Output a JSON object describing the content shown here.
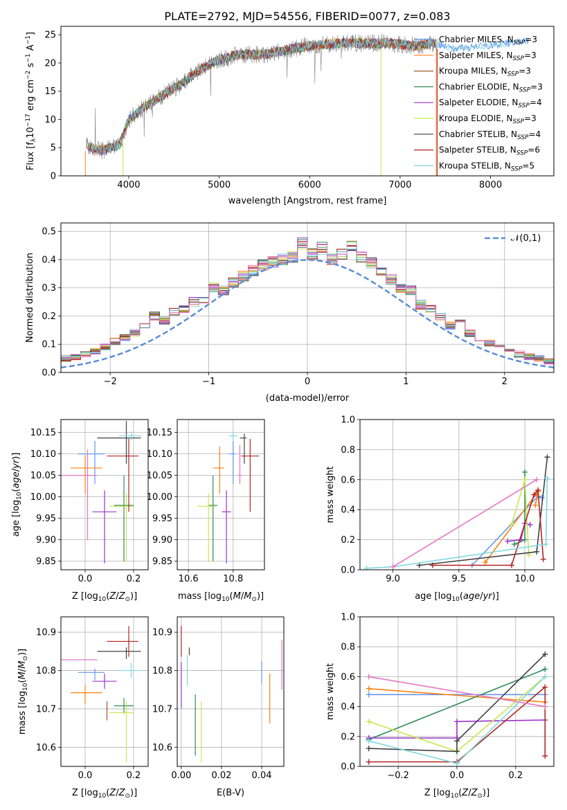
{
  "figure_title": "PLATE=2792, MJD=54556, FIBERID=0077, z=0.083",
  "colors": {
    "Chabrier MILES": "#6495ed",
    "Salpeter MILES": "#ff7f0e",
    "Kroupa MILES": "#a0522d",
    "Chabrier ELODIE": "#2e8b57",
    "Salpeter ELODIE": "#9932cc",
    "Kroupa ELODIE": "#c8e650",
    "Chabrier STELIB": "#404040",
    "Salpeter STELIB": "#b22222",
    "Kroupa STELIB": "#7fd8e0",
    "pink": "#e377c2",
    "normal": "#5b8dd6"
  },
  "chart_data": [
    {
      "id": "spectrum",
      "type": "line",
      "title": "PLATE=2792, MJD=54556, FIBERID=0077, z=0.083",
      "xlabel": "wavelength [Angstrom, rest frame]",
      "ylabel": "Flux [f_λ 10^-17 erg cm^-2 s^-1 A^-1]",
      "xlim": [
        3250,
        8700
      ],
      "ylim": [
        0,
        26.5
      ],
      "xticks": [
        "4000",
        "5000",
        "6000",
        "7000",
        "8000"
      ],
      "yticks": [
        "0",
        "5",
        "10",
        "15",
        "20",
        "25"
      ],
      "legend": [
        "Chabrier MILES, N_SSP=3",
        "Salpeter MILES, N_SSP=3",
        "Kroupa MILES, N_SSP=3",
        "Chabrier ELODIE, N_SSP=3",
        "Salpeter ELODIE, N_SSP=4",
        "Kroupa ELODIE, N_SSP=3",
        "Chabrier STELIB, N_SSP=4",
        "Salpeter STELIB, N_SSP=6",
        "Kroupa STELIB, N_SSP=5"
      ],
      "continuum": {
        "x": [
          3500,
          3700,
          3900,
          4000,
          4200,
          4400,
          4600,
          4800,
          5000,
          5200,
          5500,
          5800,
          6000,
          6300,
          6600,
          6900,
          7200,
          7400,
          7600,
          7900,
          8200,
          8400
        ],
        "y": [
          5.5,
          4.5,
          5.5,
          10,
          12.5,
          14.5,
          16.5,
          19,
          20.5,
          21.5,
          21.5,
          22.5,
          23,
          23.5,
          23.5,
          23.5,
          23,
          23.5,
          22.5,
          23,
          23.5,
          24
        ]
      }
    },
    {
      "id": "residuals",
      "type": "histogram",
      "xlabel": "(data-model)/error",
      "ylabel": "Normed distribution",
      "xlim": [
        -2.5,
        2.5
      ],
      "ylim": [
        0,
        0.53
      ],
      "xticks": [
        "−2",
        "−1",
        "0",
        "1",
        "2"
      ],
      "yticks": [
        "0.0",
        "0.1",
        "0.2",
        "0.3",
        "0.4",
        "0.5"
      ],
      "legend": "𝒩(0,1)",
      "bin_width": 0.1,
      "mean_bins": [
        0.02,
        0.025,
        0.03,
        0.035,
        0.04,
        0.05,
        0.055,
        0.065,
        0.075,
        0.09,
        0.11,
        0.125,
        0.14,
        0.16,
        0.2,
        0.185,
        0.215,
        0.225,
        0.25,
        0.26,
        0.3,
        0.29,
        0.32,
        0.34,
        0.36,
        0.38,
        0.39,
        0.4,
        0.41,
        0.46,
        0.42,
        0.44,
        0.4,
        0.42,
        0.45,
        0.41,
        0.39,
        0.36,
        0.33,
        0.3,
        0.29,
        0.24,
        0.225,
        0.2,
        0.165,
        0.175,
        0.14,
        0.125,
        0.105,
        0.09,
        0.075,
        0.065,
        0.055,
        0.05,
        0.04,
        0.035,
        0.03,
        0.025,
        0.025,
        0.02
      ]
    },
    {
      "id": "age-vs-Z",
      "type": "errorbar",
      "xlabel": "Z [log10(Z/Z⊙)]",
      "ylabel": "age  [log10(age/yr)]",
      "xlim": [
        -0.1,
        0.26
      ],
      "ylim": [
        9.83,
        10.18
      ],
      "xticks": [
        "0.0",
        "0.2"
      ],
      "yticks": [
        "9.85",
        "9.90",
        "9.95",
        "10.00",
        "10.05",
        "10.10",
        "10.15"
      ],
      "points": [
        {
          "model": "Chabrier MILES",
          "x": 0.04,
          "xerr": [
            0.07,
            0.04
          ],
          "y": 10.1,
          "yerr": [
            0.07,
            0.03
          ]
        },
        {
          "model": "Salpeter MILES",
          "x": 0.0,
          "xerr": [
            0.06,
            0.07
          ],
          "y": 10.067,
          "yerr": [
            0.06,
            0.03
          ]
        },
        {
          "model": "Chabrier ELODIE",
          "x": 0.16,
          "xerr": [
            0.04,
            0.04
          ],
          "y": 9.98,
          "yerr": [
            0.13,
            0.07
          ]
        },
        {
          "model": "Salpeter ELODIE",
          "x": 0.08,
          "xerr": [
            0.05,
            0.05
          ],
          "y": 9.965,
          "yerr": [
            0.12,
            0.05
          ]
        },
        {
          "model": "Kroupa ELODIE",
          "x": 0.17,
          "xerr": [
            0.07,
            0.03
          ],
          "y": 9.978,
          "yerr": [
            0.13,
            0.03
          ]
        },
        {
          "model": "Chabrier STELIB",
          "x": 0.17,
          "xerr": [
            0.12,
            0.06
          ],
          "y": 10.137,
          "yerr": [
            0.06,
            0.04
          ]
        },
        {
          "model": "Salpeter STELIB",
          "x": 0.18,
          "xerr": [
            0.09,
            0.04
          ],
          "y": 10.095,
          "yerr": [
            0.13,
            0.04
          ]
        },
        {
          "model": "Kroupa STELIB",
          "x": 0.19,
          "xerr": [
            0.05,
            0.04
          ],
          "y": 10.142,
          "yerr": [
            0.01,
            0.01
          ]
        },
        {
          "model": "pink",
          "x": 0.01,
          "xerr": [
            0.12,
            0.04
          ],
          "y": 10.05,
          "yerr": [
            0.15,
            0.06
          ]
        }
      ]
    },
    {
      "id": "age-vs-mass",
      "type": "errorbar",
      "xlabel": "mass [log10(M/M⊙)]",
      "ylabel": "",
      "xlim": [
        10.55,
        10.94
      ],
      "ylim": [
        9.83,
        10.18
      ],
      "xticks": [
        "10.6",
        "10.8"
      ],
      "yticks": [
        "9.85",
        "9.90",
        "9.95",
        "10.00",
        "10.05",
        "10.10",
        "10.15"
      ],
      "points": [
        {
          "model": "Chabrier MILES",
          "x": 10.8,
          "xerr": [
            0.02,
            0.01
          ],
          "y": 10.1,
          "yerr": [
            0.07,
            0.03
          ]
        },
        {
          "model": "Salpeter MILES",
          "x": 10.74,
          "xerr": [
            0.03,
            0.02
          ],
          "y": 10.067,
          "yerr": [
            0.06,
            0.05
          ]
        },
        {
          "model": "Chabrier ELODIE",
          "x": 10.71,
          "xerr": [
            0.02,
            0.02
          ],
          "y": 9.98,
          "yerr": [
            0.13,
            0.07
          ]
        },
        {
          "model": "Salpeter ELODIE",
          "x": 10.77,
          "xerr": [
            0.02,
            0.02
          ],
          "y": 9.965,
          "yerr": [
            0.12,
            0.05
          ]
        },
        {
          "model": "Kroupa ELODIE",
          "x": 10.69,
          "xerr": [
            0.05,
            0.03
          ],
          "y": 9.978,
          "yerr": [
            0.13,
            0.03
          ]
        },
        {
          "model": "Chabrier STELIB",
          "x": 10.85,
          "xerr": [
            0.02,
            0.01
          ],
          "y": 10.137,
          "yerr": [
            0.06,
            0.01
          ]
        },
        {
          "model": "Salpeter STELIB",
          "x": 10.876,
          "xerr": [
            0.04,
            0.04
          ],
          "y": 10.095,
          "yerr": [
            0.13,
            0.04
          ]
        },
        {
          "model": "Kroupa STELIB",
          "x": 10.8,
          "xerr": [
            0.02,
            0.02
          ],
          "y": 10.142,
          "yerr": [
            0.01,
            0.01
          ]
        },
        {
          "model": "pink",
          "x": 10.83,
          "xerr": [
            0.01,
            0.01
          ],
          "y": 10.05,
          "yerr": [
            0.02,
            0.07
          ]
        }
      ]
    },
    {
      "id": "massweight-vs-age",
      "type": "line",
      "xlabel": "age  [log10(age/yr)]",
      "ylabel": "mass weight",
      "xlim": [
        8.75,
        10.22
      ],
      "ylim": [
        0,
        1
      ],
      "xticks": [
        "9.0",
        "9.5",
        "10.0"
      ],
      "yticks": [
        "0.0",
        "0.2",
        "0.4",
        "0.6",
        "0.8",
        "1.0"
      ],
      "series": [
        {
          "model": "Chabrier MILES",
          "x": [
            9.6,
            10.1,
            10.13
          ],
          "y": [
            0.03,
            0.49,
            0.48
          ]
        },
        {
          "model": "Salpeter MILES",
          "x": [
            9.7,
            10.1,
            10.08
          ],
          "y": [
            0.05,
            0.52,
            0.43
          ]
        },
        {
          "model": "Chabrier ELODIE",
          "x": [
            9.92,
            10.0,
            10.0
          ],
          "y": [
            0.17,
            0.2,
            0.65
          ]
        },
        {
          "model": "Salpeter ELODIE",
          "x": [
            9.87,
            9.97,
            10.0,
            10.04
          ],
          "y": [
            0.19,
            0.2,
            0.31,
            0.3
          ]
        },
        {
          "model": "Kroupa ELODIE",
          "x": [
            9.9,
            10.0,
            10.03
          ],
          "y": [
            0.3,
            0.6,
            0.1
          ]
        },
        {
          "model": "Chabrier STELIB",
          "x": [
            9.2,
            10.09,
            10.17
          ],
          "y": [
            0.03,
            0.12,
            0.75
          ]
        },
        {
          "model": "Salpeter STELIB",
          "x": [
            9.3,
            9.9,
            10.07,
            10.1,
            10.14
          ],
          "y": [
            0.03,
            0.03,
            0.5,
            0.53,
            0.07
          ]
        },
        {
          "model": "Kroupa STELIB",
          "x": [
            8.8,
            9.0,
            10.16,
            10.17
          ],
          "y": [
            0.01,
            0.02,
            0.17,
            0.61
          ]
        },
        {
          "model": "pink",
          "x": [
            9.0,
            10.09
          ],
          "y": [
            0.02,
            0.6
          ]
        }
      ]
    },
    {
      "id": "mass-vs-Z",
      "type": "errorbar",
      "xlabel": "Z [log10(Z/Z⊙)]",
      "ylabel": "mass [log10(M/M⊙)]",
      "xlim": [
        -0.1,
        0.26
      ],
      "ylim": [
        10.55,
        10.94
      ],
      "xticks": [
        "0.0",
        "0.2"
      ],
      "yticks": [
        "10.6",
        "10.7",
        "10.8",
        "10.9"
      ],
      "points": [
        {
          "model": "Chabrier MILES",
          "x": 0.04,
          "xerr": [
            0.07,
            0.04
          ],
          "y": 10.795,
          "yerr": [
            0.02,
            0.01
          ]
        },
        {
          "model": "Salpeter MILES",
          "x": 0.0,
          "xerr": [
            0.06,
            0.07
          ],
          "y": 10.742,
          "yerr": [
            0.03,
            0.02
          ]
        },
        {
          "model": "Kroupa MILES",
          "x": 0.09,
          "xerr": [
            0.0,
            0.0
          ],
          "y": 10.7,
          "yerr": [
            0.03,
            0.02
          ]
        },
        {
          "model": "Chabrier ELODIE",
          "x": 0.16,
          "xerr": [
            0.04,
            0.04
          ],
          "y": 10.708,
          "yerr": [
            0.02,
            0.02
          ]
        },
        {
          "model": "Salpeter ELODIE",
          "x": 0.08,
          "xerr": [
            0.05,
            0.05
          ],
          "y": 10.772,
          "yerr": [
            0.02,
            0.02
          ]
        },
        {
          "model": "Kroupa ELODIE",
          "x": 0.17,
          "xerr": [
            0.07,
            0.03
          ],
          "y": 10.69,
          "yerr": [
            0.13,
            0.03
          ]
        },
        {
          "model": "Chabrier STELIB",
          "x": 0.17,
          "xerr": [
            0.12,
            0.06
          ],
          "y": 10.85,
          "yerr": [
            0.02,
            0.01
          ]
        },
        {
          "model": "Salpeter STELIB",
          "x": 0.18,
          "xerr": [
            0.09,
            0.04
          ],
          "y": 10.876,
          "yerr": [
            0.04,
            0.04
          ]
        },
        {
          "model": "Kroupa STELIB",
          "x": 0.19,
          "xerr": [
            0.05,
            0.04
          ],
          "y": 10.8,
          "yerr": [
            0.02,
            0.02
          ]
        },
        {
          "model": "pink",
          "x": 0.01,
          "xerr": [
            0.12,
            0.04
          ],
          "y": 10.828,
          "yerr": [
            0.0,
            0.0
          ]
        }
      ]
    },
    {
      "id": "mass-vs-EBV",
      "type": "errorbar",
      "xlabel": "E(B-V)",
      "ylabel": "",
      "xlim": [
        -0.002,
        0.051
      ],
      "ylim": [
        10.55,
        10.94
      ],
      "xticks": [
        "0.00",
        "0.02",
        "0.04"
      ],
      "yticks": [
        "10.6",
        "10.7",
        "10.8",
        "10.9"
      ],
      "points": [
        {
          "model": "Chabrier MILES",
          "x": 0.04,
          "y": 10.795,
          "yerr": [
            0.03,
            0.03
          ]
        },
        {
          "model": "Salpeter MILES",
          "x": 0.044,
          "y": 10.742,
          "yerr": [
            0.08,
            0.05
          ]
        },
        {
          "model": "Chabrier ELODIE",
          "x": 0.007,
          "y": 10.708,
          "yerr": [
            0.13,
            0.03
          ]
        },
        {
          "model": "Salpeter ELODIE",
          "x": 0.0,
          "y": 10.772,
          "yerr": [
            0.07,
            0.05
          ]
        },
        {
          "model": "Kroupa ELODIE",
          "x": 0.01,
          "y": 10.69,
          "yerr": [
            0.13,
            0.03
          ]
        },
        {
          "model": "Chabrier STELIB",
          "x": 0.004,
          "y": 10.85,
          "yerr": [
            0.01,
            0.01
          ]
        },
        {
          "model": "Salpeter STELIB",
          "x": 0.0,
          "y": 10.876,
          "yerr": [
            0.04,
            0.04
          ]
        },
        {
          "model": "Kroupa STELIB",
          "x": 0.003,
          "y": 10.8,
          "yerr": [
            0.04,
            0.04
          ]
        },
        {
          "model": "pink",
          "x": 0.05,
          "y": 10.8,
          "yerr": [
            0.05,
            0.08
          ]
        }
      ]
    },
    {
      "id": "massweight-vs-Z",
      "type": "line",
      "xlabel": "Z [log10(Z/Z⊙)]",
      "ylabel": "mass weight",
      "xlim": [
        -0.33,
        0.33
      ],
      "ylim": [
        0,
        1
      ],
      "xticks": [
        "−0.2",
        "0.0",
        "0.2"
      ],
      "yticks": [
        "0.0",
        "0.2",
        "0.4",
        "0.6",
        "0.8",
        "1.0"
      ],
      "series": [
        {
          "model": "Chabrier MILES",
          "x": [
            -0.3,
            0.3
          ],
          "y": [
            0.48,
            0.48
          ]
        },
        {
          "model": "Salpeter MILES",
          "x": [
            -0.3,
            0.3
          ],
          "y": [
            0.52,
            0.43
          ]
        },
        {
          "model": "Chabrier ELODIE",
          "x": [
            -0.3,
            0.3
          ],
          "y": [
            0.18,
            0.65
          ]
        },
        {
          "model": "Salpeter ELODIE",
          "x": [
            -0.3,
            0.0,
            0.0,
            0.3
          ],
          "y": [
            0.19,
            0.19,
            0.3,
            0.31
          ]
        },
        {
          "model": "Kroupa ELODIE",
          "x": [
            -0.3,
            0.0,
            0.3
          ],
          "y": [
            0.3,
            0.1,
            0.6
          ]
        },
        {
          "model": "Chabrier STELIB",
          "x": [
            -0.3,
            0.0,
            0.0,
            0.3
          ],
          "y": [
            0.12,
            0.1,
            0.17,
            0.75
          ]
        },
        {
          "model": "Salpeter STELIB",
          "x": [
            -0.3,
            0.0,
            0.3,
            0.3
          ],
          "y": [
            0.03,
            0.03,
            0.53,
            0.07
          ]
        },
        {
          "model": "Kroupa STELIB",
          "x": [
            -0.3,
            0.0,
            0.3
          ],
          "y": [
            0.17,
            0.02,
            0.6
          ]
        },
        {
          "model": "pink",
          "x": [
            -0.3,
            0.3
          ],
          "y": [
            0.6,
            0.4
          ]
        }
      ]
    }
  ]
}
